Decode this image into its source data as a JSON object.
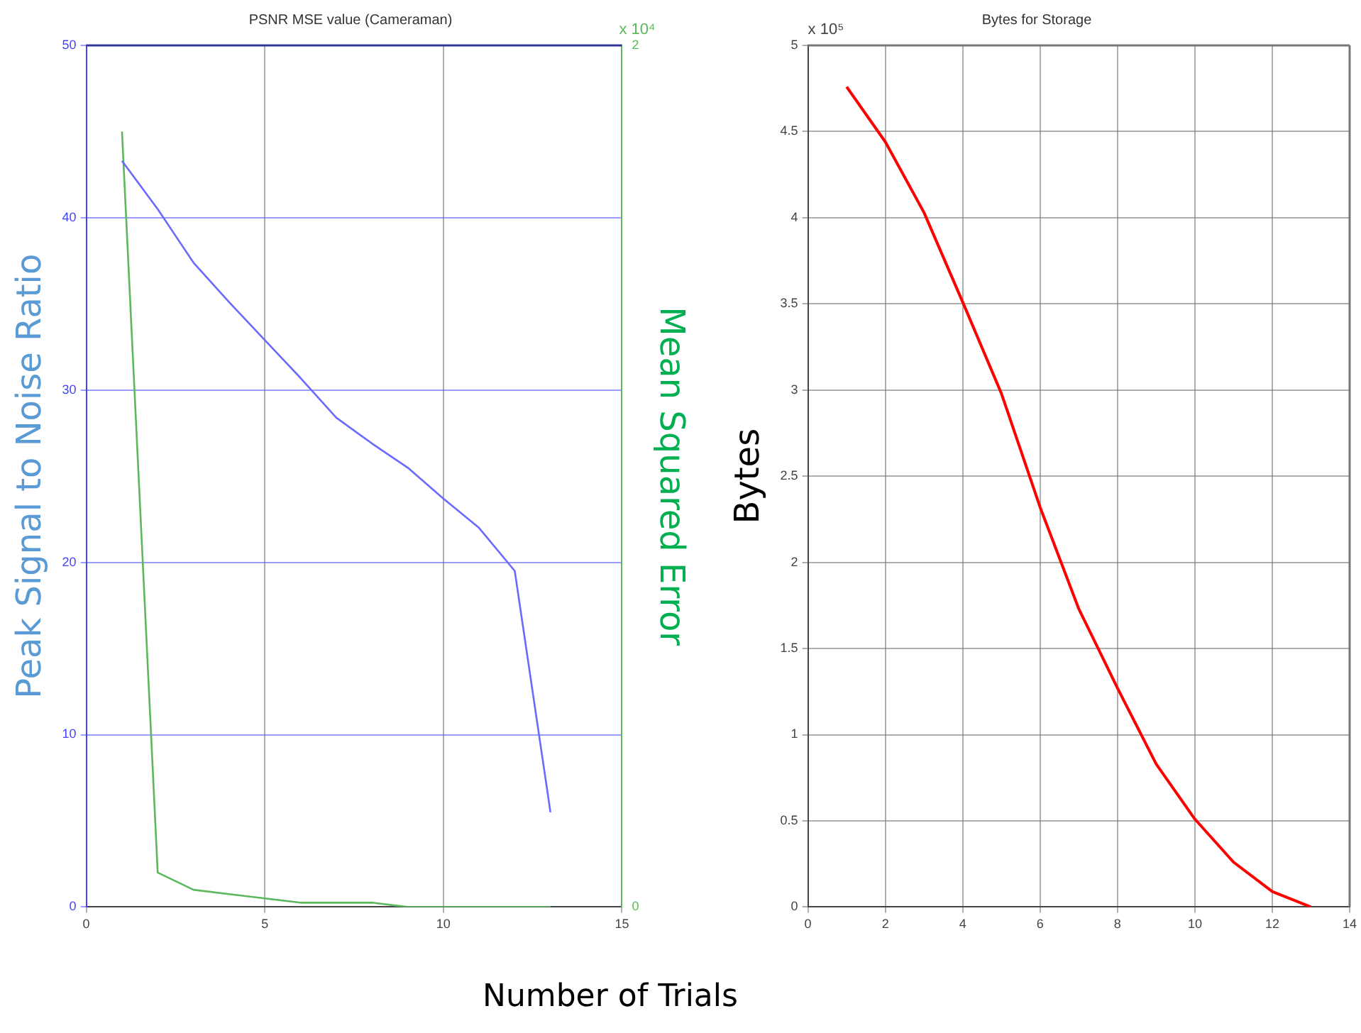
{
  "chart_data": [
    {
      "type": "line",
      "title": "PSNR MSE value (Cameraman)",
      "xlabel": "Number of Trials",
      "ylabel": "Peak Signal to Noise Ratio",
      "y2label": "Mean Squared Error",
      "annotations": [
        "x 10⁴"
      ],
      "x": [
        1,
        2,
        3,
        4,
        5,
        6,
        7,
        8,
        9,
        10,
        11,
        12,
        13
      ],
      "series": [
        {
          "color": "#6a6aff",
          "values": [
            43.3,
            40.5,
            37.4,
            35.1,
            32.9,
            30.7,
            28.4,
            26.9,
            25.5,
            23.7,
            22.0,
            19.5,
            5.5
          ]
        },
        {
          "color": "#5cb85c",
          "axis": "y2",
          "values": [
            1.8,
            0.08,
            0.04,
            0.03,
            0.02,
            0.01,
            0.01,
            0.01,
            0,
            0,
            0,
            0,
            0
          ]
        }
      ],
      "xlim": [
        0,
        15
      ],
      "xticks": [
        0,
        5,
        10,
        15
      ],
      "ylim": [
        0,
        50
      ],
      "yticks": [
        0,
        10,
        20,
        30,
        40,
        50
      ],
      "y2lim": [
        0,
        2
      ],
      "y2ticks": [
        0,
        2
      ],
      "grid": true
    },
    {
      "type": "line",
      "title": "Bytes for Storage",
      "ylabel": "Bytes",
      "annotations": [
        "x 10⁵"
      ],
      "x": [
        1,
        2,
        3,
        4,
        5,
        6,
        7,
        8,
        9,
        10,
        11,
        12,
        13
      ],
      "series": [
        {
          "color": "#ff0000",
          "values": [
            4.76,
            4.44,
            4.03,
            3.51,
            2.98,
            2.32,
            1.73,
            1.27,
            0.83,
            0.51,
            0.26,
            0.09,
            0
          ]
        }
      ],
      "xlim": [
        0,
        14
      ],
      "xticks": [
        0,
        2,
        4,
        6,
        8,
        10,
        12,
        14
      ],
      "ylim": [
        0,
        5
      ],
      "yticks": [
        0,
        0.5,
        1,
        1.5,
        2,
        2.5,
        3,
        3.5,
        4,
        4.5,
        5
      ],
      "grid": true
    }
  ]
}
